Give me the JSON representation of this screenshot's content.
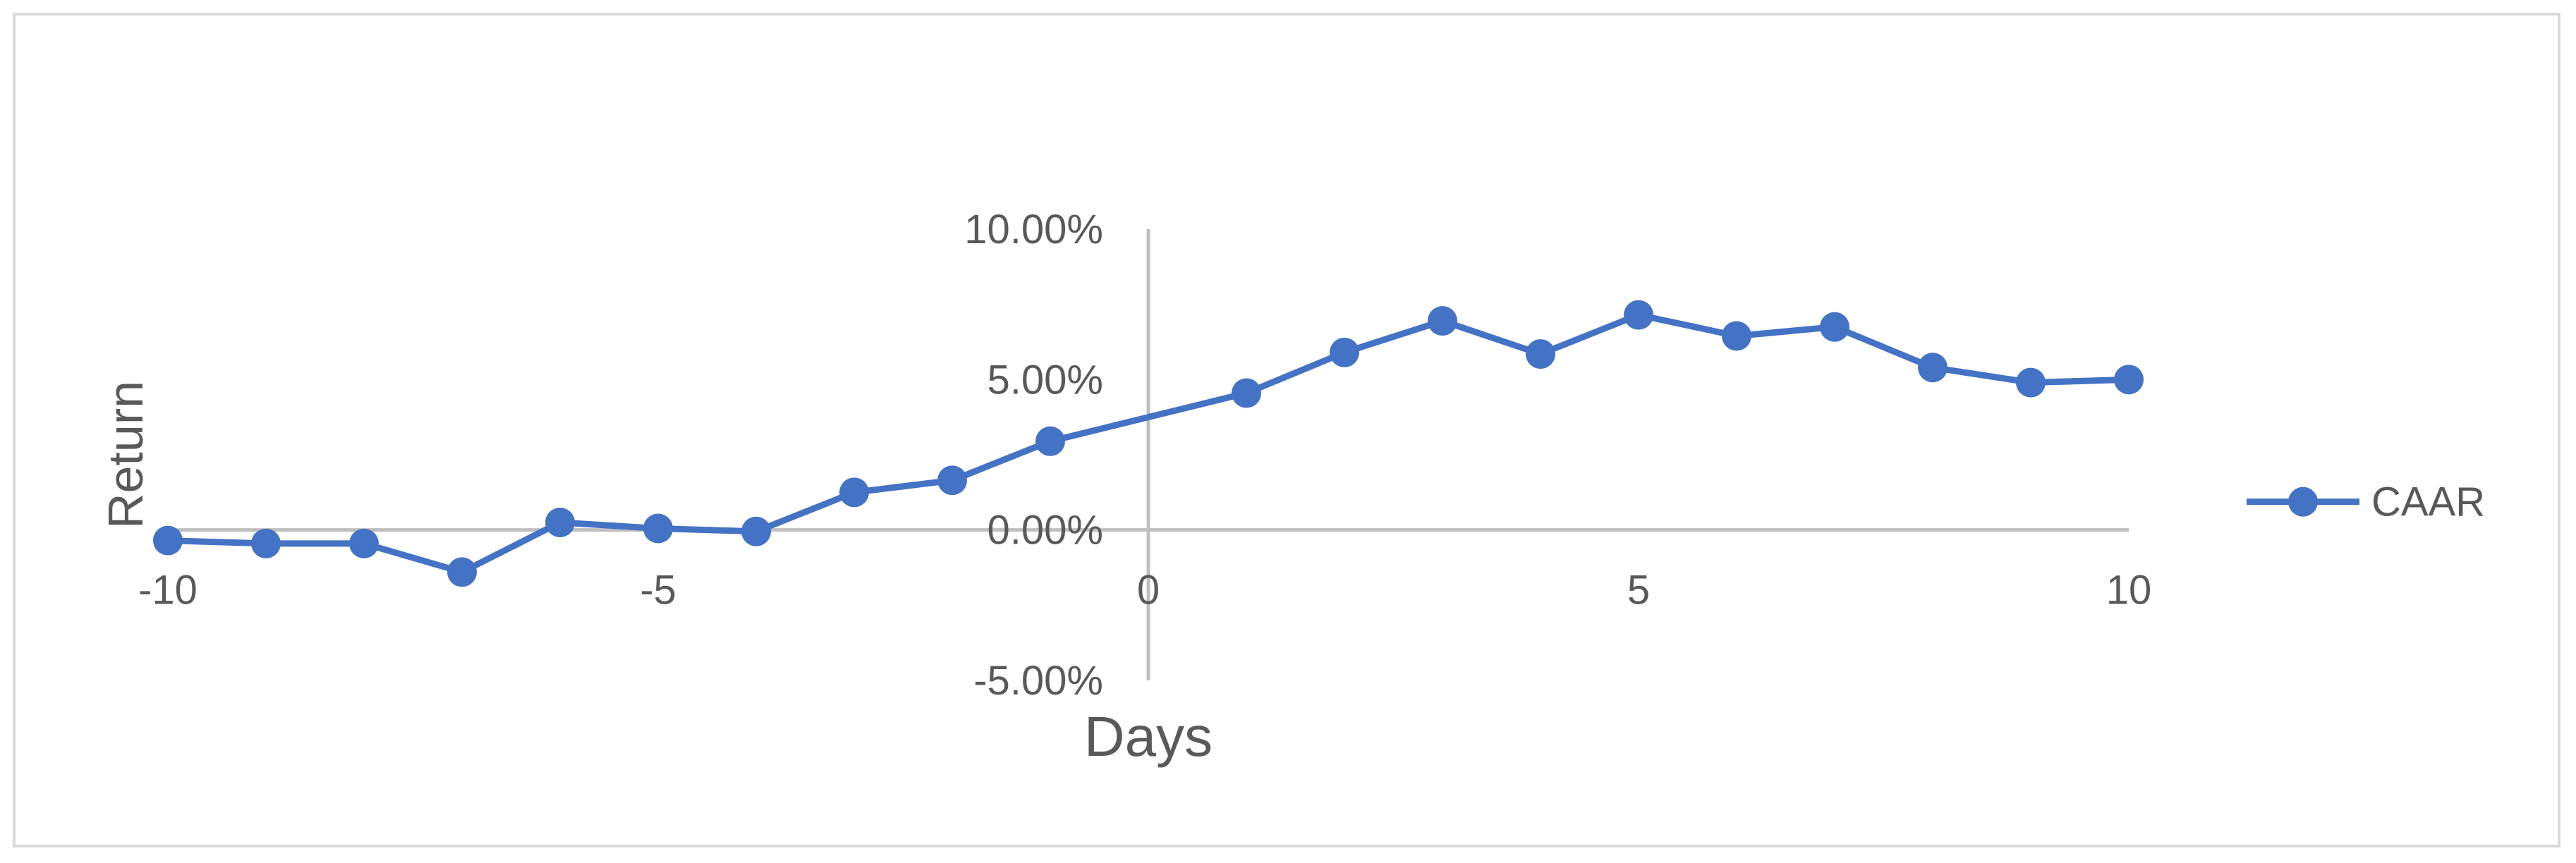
{
  "chart_data": {
    "type": "line",
    "title": "",
    "xlabel": "Days",
    "ylabel": "Return",
    "xlim": [
      -10,
      10
    ],
    "ylim": [
      -0.05,
      0.1
    ],
    "x_ticks": [
      -10,
      -5,
      0,
      5,
      10
    ],
    "x_tick_labels": [
      "-10",
      "-5",
      "0",
      "5",
      "10"
    ],
    "y_ticks": [
      -0.05,
      0.0,
      0.05,
      0.1
    ],
    "y_tick_labels": [
      "-5.00%",
      "0.00%",
      "5.00%",
      "10.00%"
    ],
    "grid": false,
    "legend_position": "right",
    "series": [
      {
        "name": "CAAR",
        "color": "#4472c4",
        "x": [
          -10,
          -9,
          -8,
          -7,
          -6,
          -5,
          -4,
          -3,
          -2,
          -1,
          1,
          2,
          3,
          4,
          5,
          6,
          7,
          8,
          9,
          10
        ],
        "y": [
          -0.0035,
          -0.0045,
          -0.0045,
          -0.014,
          0.0025,
          0.0005,
          -0.0005,
          0.0125,
          0.0165,
          0.0295,
          0.0455,
          0.059,
          0.0695,
          0.0585,
          0.0715,
          0.0645,
          0.0675,
          0.054,
          0.049,
          0.05
        ]
      }
    ]
  }
}
